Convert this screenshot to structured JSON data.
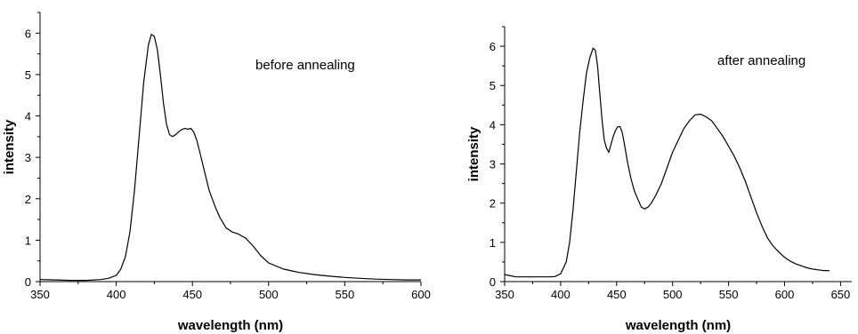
{
  "chart_data": [
    {
      "type": "line",
      "title": "",
      "annotation": "before annealing",
      "xlabel": "wavelength (nm)",
      "ylabel": "intensity",
      "xlim": [
        350,
        600
      ],
      "ylim": [
        0,
        6.5
      ],
      "xticks": [
        350,
        400,
        450,
        500,
        550,
        600
      ],
      "yticks": [
        0,
        1,
        2,
        3,
        4,
        5,
        6
      ],
      "grid": false,
      "legend": "none",
      "series": [
        {
          "color": "#000000",
          "x": [
            350,
            360,
            370,
            380,
            390,
            395,
            400,
            403,
            406,
            409,
            412,
            415,
            418,
            421,
            423,
            425,
            427,
            429,
            431,
            433,
            435,
            437,
            439,
            441,
            443,
            445,
            447,
            449,
            451,
            453,
            455,
            457,
            459,
            461,
            463,
            465,
            468,
            472,
            476,
            480,
            485,
            490,
            495,
            500,
            510,
            520,
            530,
            540,
            550,
            560,
            570,
            580,
            590,
            600
          ],
          "y": [
            0.05,
            0.04,
            0.03,
            0.03,
            0.05,
            0.08,
            0.15,
            0.3,
            0.6,
            1.2,
            2.2,
            3.5,
            4.8,
            5.7,
            5.97,
            5.92,
            5.6,
            5.0,
            4.3,
            3.8,
            3.55,
            3.5,
            3.55,
            3.62,
            3.67,
            3.7,
            3.68,
            3.7,
            3.6,
            3.4,
            3.1,
            2.8,
            2.5,
            2.2,
            2.0,
            1.8,
            1.55,
            1.3,
            1.2,
            1.15,
            1.05,
            0.85,
            0.62,
            0.45,
            0.3,
            0.22,
            0.17,
            0.13,
            0.1,
            0.08,
            0.06,
            0.05,
            0.04,
            0.04
          ]
        }
      ]
    },
    {
      "type": "line",
      "title": "",
      "annotation": "after annealing",
      "xlabel": "wavelength (nm)",
      "ylabel": "intensity",
      "xlim": [
        350,
        660
      ],
      "ylim": [
        0,
        6.5
      ],
      "xticks": [
        350,
        400,
        450,
        500,
        550,
        600,
        650
      ],
      "yticks": [
        0,
        1,
        2,
        3,
        4,
        5,
        6
      ],
      "grid": false,
      "legend": "none",
      "series": [
        {
          "color": "#000000",
          "x": [
            350,
            355,
            360,
            370,
            380,
            390,
            395,
            400,
            405,
            408,
            411,
            414,
            417,
            420,
            423,
            426,
            429,
            431,
            433,
            435,
            437,
            439,
            441,
            443,
            445,
            447,
            449,
            451,
            453,
            455,
            457,
            460,
            463,
            466,
            469,
            472,
            475,
            478,
            481,
            485,
            490,
            495,
            500,
            505,
            510,
            515,
            520,
            525,
            530,
            535,
            540,
            545,
            550,
            555,
            560,
            565,
            570,
            575,
            580,
            585,
            590,
            595,
            600,
            605,
            610,
            615,
            620,
            625,
            630,
            635,
            640
          ],
          "y": [
            0.18,
            0.15,
            0.12,
            0.12,
            0.12,
            0.12,
            0.13,
            0.2,
            0.5,
            1.0,
            1.8,
            2.8,
            3.8,
            4.6,
            5.3,
            5.7,
            5.95,
            5.9,
            5.5,
            4.8,
            4.1,
            3.6,
            3.4,
            3.3,
            3.5,
            3.7,
            3.85,
            3.95,
            3.95,
            3.8,
            3.5,
            3.0,
            2.6,
            2.3,
            2.1,
            1.9,
            1.85,
            1.9,
            2.0,
            2.2,
            2.5,
            2.9,
            3.3,
            3.6,
            3.9,
            4.1,
            4.25,
            4.27,
            4.2,
            4.1,
            3.9,
            3.7,
            3.45,
            3.2,
            2.9,
            2.55,
            2.15,
            1.75,
            1.4,
            1.1,
            0.9,
            0.75,
            0.62,
            0.52,
            0.45,
            0.4,
            0.35,
            0.32,
            0.3,
            0.28,
            0.28
          ]
        }
      ]
    }
  ]
}
